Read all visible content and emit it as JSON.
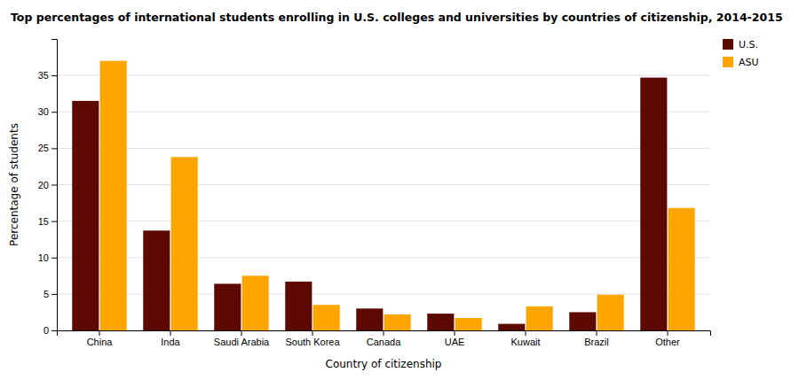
{
  "chart_data": {
    "type": "bar",
    "title": "Top percentages of international students enrolling in U.S. colleges and universities by countries of citizenship, 2014-2015",
    "xlabel": "Country of citizenship",
    "ylabel": "Percentage of students",
    "categories": [
      "China",
      "Inda",
      "Saudi Arabia",
      "South Korea",
      "Canada",
      "UAE",
      "Kuwait",
      "Brazil",
      "Other"
    ],
    "series": [
      {
        "name": "U.S.",
        "color": "#5C0A00",
        "values": [
          31.5,
          13.7,
          6.4,
          6.7,
          3.0,
          2.3,
          0.9,
          2.5,
          34.7
        ]
      },
      {
        "name": "ASU",
        "color": "#FFA500",
        "values": [
          37.0,
          23.8,
          7.5,
          3.5,
          2.2,
          1.7,
          3.3,
          4.9,
          16.8
        ]
      }
    ],
    "ylim": [
      0,
      40
    ],
    "yticks": [
      0,
      5,
      10,
      15,
      20,
      25,
      30,
      35
    ],
    "grid": true,
    "legend": "upper right"
  }
}
